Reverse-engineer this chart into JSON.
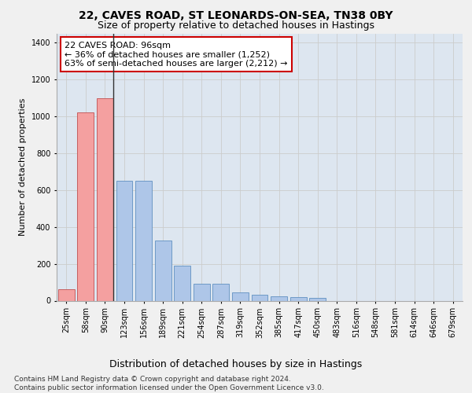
{
  "title": "22, CAVES ROAD, ST LEONARDS-ON-SEA, TN38 0BY",
  "subtitle": "Size of property relative to detached houses in Hastings",
  "xlabel": "Distribution of detached houses by size in Hastings",
  "ylabel": "Number of detached properties",
  "categories": [
    "25sqm",
    "58sqm",
    "90sqm",
    "123sqm",
    "156sqm",
    "189sqm",
    "221sqm",
    "254sqm",
    "287sqm",
    "319sqm",
    "352sqm",
    "385sqm",
    "417sqm",
    "450sqm",
    "483sqm",
    "516sqm",
    "548sqm",
    "581sqm",
    "614sqm",
    "646sqm",
    "679sqm"
  ],
  "values": [
    60,
    1020,
    1100,
    650,
    650,
    325,
    190,
    90,
    90,
    45,
    30,
    25,
    20,
    15,
    0,
    0,
    0,
    0,
    0,
    0,
    0
  ],
  "bar_color_left": "#f4a0a0",
  "bar_color_right": "#aec6e8",
  "bar_edge_color_left": "#c05050",
  "bar_edge_color_right": "#6090c0",
  "vline_index": 2,
  "vline_color": "#333333",
  "annotation_line1": "22 CAVES ROAD: 96sqm",
  "annotation_line2": "← 36% of detached houses are smaller (1,252)",
  "annotation_line3": "63% of semi-detached houses are larger (2,212) →",
  "annotation_box_facecolor": "#ffffff",
  "annotation_box_edgecolor": "#cc0000",
  "ylim": [
    0,
    1450
  ],
  "yticks": [
    0,
    200,
    400,
    600,
    800,
    1000,
    1200,
    1400
  ],
  "grid_color": "#cccccc",
  "bg_color": "#dde6f0",
  "fig_bg_color": "#f0f0f0",
  "footer_line1": "Contains HM Land Registry data © Crown copyright and database right 2024.",
  "footer_line2": "Contains public sector information licensed under the Open Government Licence v3.0.",
  "title_fontsize": 10,
  "subtitle_fontsize": 9,
  "xlabel_fontsize": 9,
  "ylabel_fontsize": 8,
  "tick_fontsize": 7,
  "annotation_fontsize": 8,
  "footer_fontsize": 6.5
}
